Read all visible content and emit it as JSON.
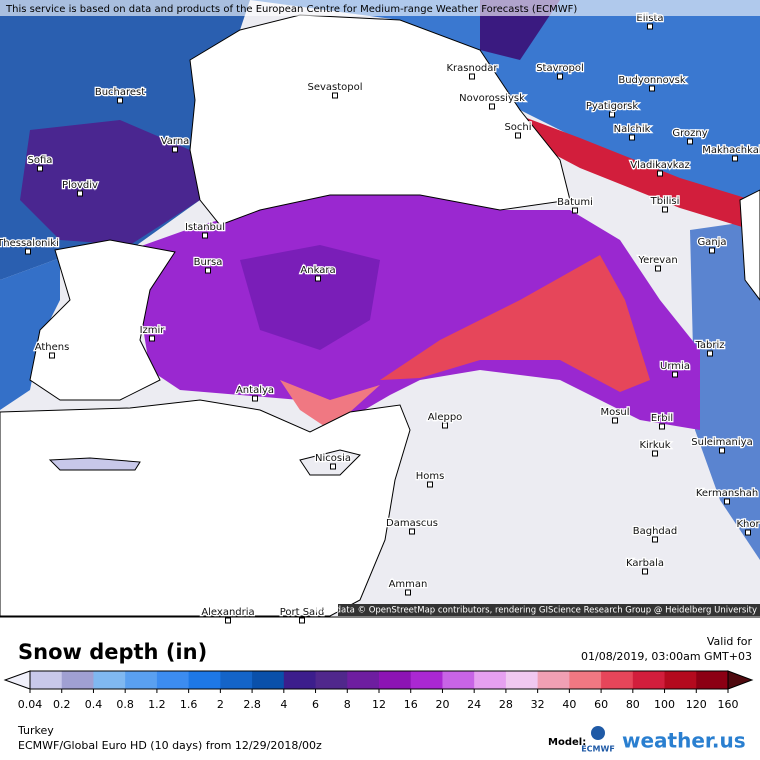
{
  "header": {
    "notice": "This service is based on data and products of the European Centre for Medium-range Weather Forecasts (ECMWF)",
    "attribution": "Map data © OpenStreetMap contributors, rendering GIScience Research Group @ Heidelberg University"
  },
  "cities": [
    "Elista",
    "Krasnodar",
    "Stavropol",
    "Budyonnovsk",
    "Bucharest",
    "Sevastopol",
    "Novorossiysk",
    "Pyatigorsk",
    "Varna",
    "Sochi",
    "Nalchik",
    "Grozny",
    "Makhachkala",
    "Sofia",
    "Vladikavkaz",
    "Plovdiv",
    "Batumi",
    "Tbilisi",
    "Istanbul",
    "Thessaloniki",
    "Ganja",
    "Bursa",
    "Ankara",
    "Yerevan",
    "Izmir",
    "Athens",
    "Tabriz",
    "Urmia",
    "Antalya",
    "Mosul",
    "Erbil",
    "Aleppo",
    "Suleimaniya",
    "Kirkuk",
    "Nicosia",
    "Homs",
    "Kermanshah",
    "Damascus",
    "Baghdad",
    "Khor",
    "Karbala",
    "Amman",
    "Alexandria",
    "Port Said"
  ],
  "legend": {
    "title": "Snow depth (in)",
    "levels": [
      0.04,
      0.2,
      0.4,
      0.8,
      1.2,
      1.6,
      2,
      2.8,
      4,
      6,
      8,
      12,
      16,
      20,
      24,
      28,
      32,
      40,
      60,
      80,
      100,
      120,
      160
    ],
    "under_color": "#f0f0fa",
    "colors": [
      "#c8c8ea",
      "#a0a0d2",
      "#80b8f0",
      "#5aa0f0",
      "#3c8cf0",
      "#1e78e6",
      "#1464c8",
      "#0a50aa",
      "#3c1e8c",
      "#50288c",
      "#6e1ea0",
      "#8c14b4",
      "#aa28d2",
      "#c864e6",
      "#e6a0f0",
      "#f0c8f0",
      "#f0a0b4",
      "#f07882",
      "#e6465a",
      "#d21e3c",
      "#b40a1e",
      "#8c0014"
    ],
    "over_color": "#500a10"
  },
  "info": {
    "valid_label": "Valid for",
    "valid_time": "01/08/2019, 03:00am GMT+03",
    "region": "Turkey",
    "model_run": "ECMWF/Global Euro HD (10 days) from 12/29/2018/00z",
    "model_label": "Model:",
    "model_logo": "ECMWF",
    "brand": "weather.us"
  }
}
